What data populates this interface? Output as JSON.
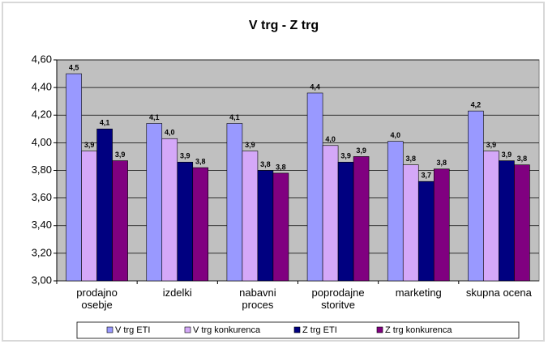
{
  "chart_data": {
    "type": "bar",
    "title": "V trg - Z trg",
    "categories": [
      "prodajno\nosebje",
      "izdelki",
      "nabavni\nproces",
      "poprodajne\nstoritve",
      "marketing",
      "skupna ocena"
    ],
    "series": [
      {
        "name": "V trg ETI",
        "color": "#9999ff",
        "values": [
          4.5,
          4.14,
          4.14,
          4.36,
          4.01,
          4.23
        ],
        "value_labels": [
          "4,5",
          "4,1",
          "4,1",
          "4,4",
          "4,0",
          "4,2"
        ]
      },
      {
        "name": "V trg konkurenca",
        "color": "#d4a8f8",
        "values": [
          3.94,
          4.03,
          3.94,
          3.98,
          3.84,
          3.94
        ],
        "value_labels": [
          "3,9",
          "4,0",
          "3,9",
          "4,0",
          "3,8",
          "3,9"
        ]
      },
      {
        "name": "Z trg ETI",
        "color": "#000080",
        "values": [
          4.1,
          3.86,
          3.8,
          3.86,
          3.72,
          3.87
        ],
        "value_labels": [
          "4,1",
          "3,9",
          "3,8",
          "3,9",
          "3,7",
          "3,9"
        ]
      },
      {
        "name": "Z trg konkurenca",
        "color": "#800080",
        "values": [
          3.87,
          3.82,
          3.78,
          3.9,
          3.81,
          3.84
        ],
        "value_labels": [
          "3,9",
          "3,8",
          "3,8",
          "3,9",
          "3,8",
          "3,8"
        ]
      }
    ],
    "ylim": [
      3.0,
      4.6
    ],
    "yticks": [
      {
        "value": 3.0,
        "label": "3,00"
      },
      {
        "value": 3.2,
        "label": "3,20"
      },
      {
        "value": 3.4,
        "label": "3,40"
      },
      {
        "value": 3.6,
        "label": "3,60"
      },
      {
        "value": 3.8,
        "label": "3,80"
      },
      {
        "value": 4.0,
        "label": "4,00"
      },
      {
        "value": 4.2,
        "label": "4,20"
      },
      {
        "value": 4.4,
        "label": "4,40"
      },
      {
        "value": 4.6,
        "label": "4,60"
      }
    ],
    "grid": true,
    "legend": "bottom"
  }
}
